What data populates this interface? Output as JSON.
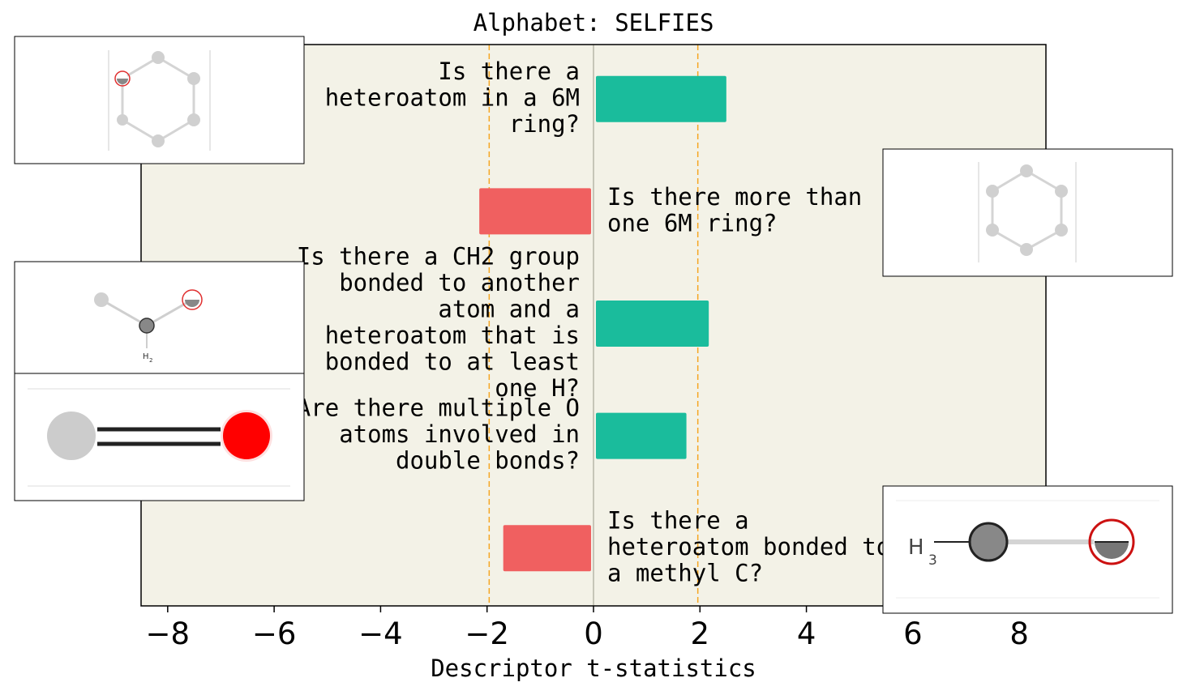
{
  "chart_data": {
    "type": "bar",
    "orientation": "horizontal",
    "title": "Alphabet: SELFIES",
    "xlabel": "Descriptor t-statistics",
    "xlim": [
      -8.5,
      8.5
    ],
    "xticks": [
      -8,
      -6,
      -4,
      -2,
      0,
      2,
      4,
      6,
      8
    ],
    "xtick_labels": [
      "−8",
      "−6",
      "−4",
      "−2",
      "0",
      "2",
      "4",
      "6",
      "8"
    ],
    "significance_lines": [
      -1.96,
      1.96
    ],
    "grid": false,
    "bars": [
      {
        "label": "Is there a heteroatom in a 6M ring?",
        "label_lines": [
          "Is there a",
          "heteroatom in a 6M",
          "ring?"
        ],
        "value": 2.45,
        "label_side": "left",
        "color": "#1abc9c"
      },
      {
        "label": "Is there more than one 6M ring?",
        "label_lines": [
          "Is there more than",
          "one 6M ring?"
        ],
        "value": -2.1,
        "label_side": "right",
        "color": "#f06060"
      },
      {
        "label": "Is there a CH2 group bonded to another atom and a heteroatom that is bonded to at least one H?",
        "label_lines": [
          "Is there a CH2 group",
          "bonded to another",
          "atom and a",
          "heteroatom that is",
          "bonded to at least",
          "one H?"
        ],
        "value": 2.12,
        "label_side": "left",
        "color": "#1abc9c"
      },
      {
        "label": "Are there multiple O atoms involved in double bonds?",
        "label_lines": [
          "Are there multiple O",
          "atoms involved in",
          "double bonds?"
        ],
        "value": 1.7,
        "label_side": "left",
        "color": "#1abc9c"
      },
      {
        "label": "Is there a heteroatom bonded to a methyl C?",
        "label_lines": [
          "Is there a",
          "heteroatom bonded to",
          "a methyl C?"
        ],
        "value": -1.65,
        "label_side": "right",
        "color": "#f06060"
      }
    ]
  },
  "colors": {
    "plot_background": "#f3f2e7",
    "positive": "#1abc9c",
    "negative": "#f06060",
    "threshold_line": "#f5a623",
    "zero_line": "#9a9a8a"
  },
  "insets": {
    "hex_ring_atom_label": "",
    "ch2_h_label": "H",
    "ch2_h_sub": "2",
    "methyl_label": "H",
    "methyl_sub": "3"
  }
}
